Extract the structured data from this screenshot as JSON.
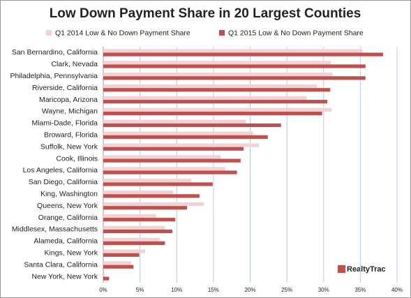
{
  "chart_data": {
    "type": "hbar",
    "title": "Low Down Payment Share in 20 Largest Counties",
    "categories": [
      "San Bernardino, California",
      "Clark, Nevada",
      "Philadelphia, Pennsylvania",
      "Riverside, California",
      "Maricopa, Arizona",
      "Wayne, Michigan",
      "Miami-Dade, Florida",
      "Broward, Florida",
      "Suffolk, New York",
      "Cook, Illinois",
      "Los Angeles, California",
      "San Diego, California",
      "King, Washington",
      "Queens, New York",
      "Orange, California",
      "Middlesex, Massachusetts",
      "Alameda, California",
      "Kings, New York",
      "Santa Clara, California",
      "New York, New York"
    ],
    "series": [
      {
        "name": "Q1 2014 Low & No Down Payment Share",
        "color": "#f2d3d3",
        "values": [
          35.3,
          31.0,
          31.2,
          29.1,
          27.7,
          31.1,
          19.4,
          20.4,
          21.2,
          16.0,
          16.6,
          12.0,
          9.5,
          13.7,
          7.2,
          8.4,
          7.7,
          5.7,
          3.8,
          0.2
        ]
      },
      {
        "name": "Q1 2015 Low & No Down Payment Share",
        "color": "#c0504d",
        "values": [
          38.1,
          35.7,
          35.7,
          30.9,
          30.5,
          29.8,
          24.2,
          22.4,
          19.1,
          18.7,
          18.2,
          14.9,
          13.1,
          11.4,
          9.8,
          9.4,
          8.4,
          4.9,
          4.1,
          0.8
        ]
      }
    ],
    "xlim": [
      0,
      40
    ],
    "xticks": [
      {
        "value": 0,
        "label": "0%"
      },
      {
        "value": 5,
        "label": "5%"
      },
      {
        "value": 10,
        "label": "10%"
      },
      {
        "value": 15,
        "label": "15%"
      },
      {
        "value": 20,
        "label": "20%"
      },
      {
        "value": 25,
        "label": "25%"
      },
      {
        "value": 30,
        "label": "30%"
      },
      {
        "value": 35,
        "label": "35%"
      },
      {
        "value": 40,
        "label": "40%"
      }
    ],
    "grid": true,
    "legend": "top",
    "annotation": "RealtyTrac"
  }
}
